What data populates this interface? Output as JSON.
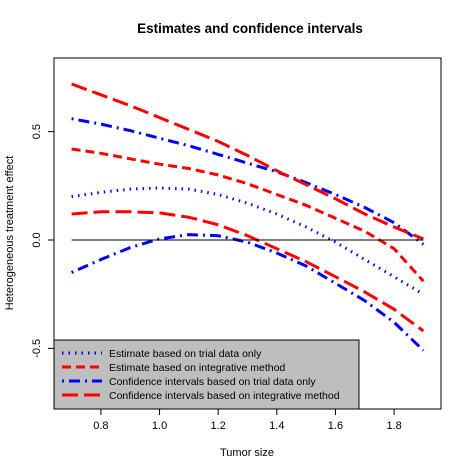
{
  "chart_data": {
    "type": "line",
    "title": "Estimates and confidence intervals",
    "xlabel": "Tumor size",
    "ylabel": "Heterogeneous treatment effect",
    "xlim": [
      0.64,
      1.96
    ],
    "ylim": [
      -0.78,
      0.84
    ],
    "x_ticks": [
      0.8,
      1.0,
      1.2,
      1.4,
      1.6,
      1.8
    ],
    "x_tick_labels": [
      "0.8",
      "1.0",
      "1.2",
      "1.4",
      "1.6",
      "1.8"
    ],
    "y_ticks": [
      -0.5,
      0.0,
      0.5
    ],
    "y_tick_labels": [
      "-0.5",
      "0.0",
      "0.5"
    ],
    "reference_line_y": 0.0,
    "legend_position": "bottom-left",
    "legend": [
      {
        "label": "Estimate based on trial data only",
        "color": "#0000ff",
        "dash": "dotted"
      },
      {
        "label": "Estimate based on integrative method",
        "color": "#ff0000",
        "dash": "dashed"
      },
      {
        "label": "Confidence intervals based on trial data only",
        "color": "#0000ff",
        "dash": "dotdash"
      },
      {
        "label": "Confidence intervals based on integrative method",
        "color": "#ff0000",
        "dash": "longdash"
      }
    ],
    "series": [
      {
        "color": "#0000ff",
        "dash": "dotted",
        "x": [
          0.7,
          0.8,
          0.9,
          1.0,
          1.1,
          1.2,
          1.3,
          1.4,
          1.5,
          1.6,
          1.7,
          1.8,
          1.9
        ],
        "y": [
          0.2,
          0.22,
          0.235,
          0.24,
          0.235,
          0.21,
          0.17,
          0.12,
          0.06,
          -0.01,
          -0.09,
          -0.17,
          -0.25
        ]
      },
      {
        "color": "#ff0000",
        "dash": "dashed",
        "x": [
          0.7,
          0.8,
          0.9,
          1.0,
          1.1,
          1.2,
          1.3,
          1.4,
          1.5,
          1.6,
          1.7,
          1.8,
          1.9
        ],
        "y": [
          0.42,
          0.4,
          0.375,
          0.35,
          0.33,
          0.3,
          0.26,
          0.21,
          0.16,
          0.1,
          0.04,
          -0.04,
          -0.19
        ]
      },
      {
        "color": "#0000ff",
        "dash": "dotdash",
        "x": [
          0.7,
          0.8,
          0.9,
          1.0,
          1.1,
          1.2,
          1.3,
          1.4,
          1.5,
          1.6,
          1.7,
          1.8,
          1.9
        ],
        "y": [
          0.56,
          0.535,
          0.505,
          0.47,
          0.435,
          0.395,
          0.355,
          0.315,
          0.265,
          0.21,
          0.15,
          0.08,
          -0.02
        ]
      },
      {
        "color": "#0000ff",
        "dash": "dotdash",
        "x": [
          0.7,
          0.8,
          0.9,
          1.0,
          1.1,
          1.2,
          1.3,
          1.4,
          1.5,
          1.6,
          1.7,
          1.8,
          1.9
        ],
        "y": [
          -0.15,
          -0.09,
          -0.035,
          0.005,
          0.025,
          0.02,
          -0.01,
          -0.06,
          -0.12,
          -0.2,
          -0.28,
          -0.38,
          -0.51
        ]
      },
      {
        "color": "#ff0000",
        "dash": "longdash",
        "x": [
          0.7,
          0.8,
          0.9,
          1.0,
          1.1,
          1.2,
          1.3,
          1.4,
          1.5,
          1.6,
          1.7,
          1.8,
          1.9
        ],
        "y": [
          0.72,
          0.67,
          0.62,
          0.565,
          0.51,
          0.455,
          0.39,
          0.32,
          0.255,
          0.19,
          0.12,
          0.06,
          0.005
        ]
      },
      {
        "color": "#ff0000",
        "dash": "longdash",
        "x": [
          0.7,
          0.8,
          0.9,
          1.0,
          1.1,
          1.2,
          1.3,
          1.4,
          1.5,
          1.6,
          1.7,
          1.8,
          1.9
        ],
        "y": [
          0.12,
          0.13,
          0.13,
          0.125,
          0.105,
          0.07,
          0.02,
          -0.04,
          -0.1,
          -0.17,
          -0.24,
          -0.32,
          -0.42
        ]
      }
    ]
  }
}
